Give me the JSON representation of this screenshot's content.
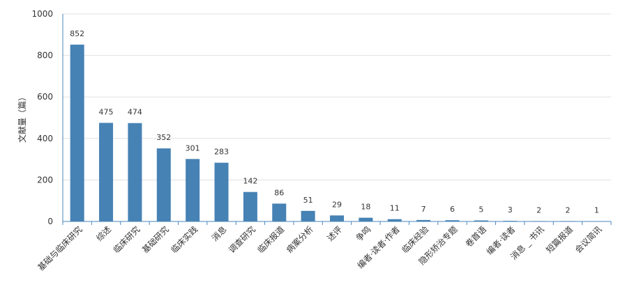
{
  "chart_data": {
    "type": "bar",
    "title": "",
    "xlabel": "",
    "ylabel": "文献量（篇）",
    "ylim": [
      0,
      1000
    ],
    "yticks": [
      0,
      200,
      400,
      600,
      800,
      1000
    ],
    "grid": true,
    "categories": [
      "基础与临床研究",
      "综述",
      "临床研究",
      "基础研究",
      "临床实践",
      "消息",
      "调查研究",
      "临床报道",
      "病案分析",
      "述评",
      "争鸣",
      "编者·读者·作者",
      "临床经验",
      "隐形矫治专题",
      "卷首语",
      "编者·读者",
      "消息 _ 书讯",
      "短篇报道",
      "会议简讯"
    ],
    "values": [
      852,
      475,
      474,
      352,
      301,
      283,
      142,
      86,
      51,
      29,
      18,
      11,
      7,
      6,
      5,
      3,
      2,
      2,
      1
    ],
    "colors": {
      "bar": "#4682b4",
      "axis": "#4a86b8",
      "grid": "#e0e0e0",
      "text": "#333333"
    }
  }
}
